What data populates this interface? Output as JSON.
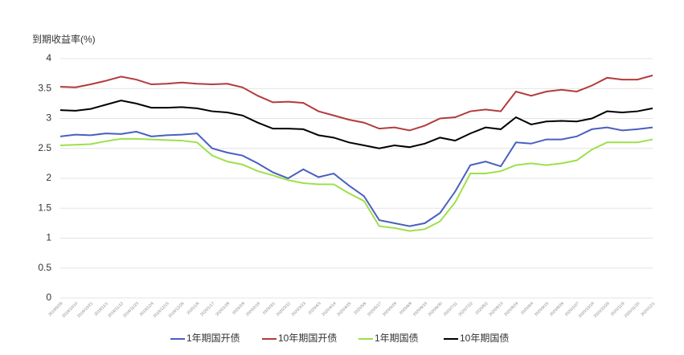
{
  "chart_data": {
    "type": "line",
    "title": "到期收益率(%)",
    "categories": [
      "2019/9/29",
      "2019/10/10",
      "2019/10/21",
      "2019/11/1",
      "2019/11/12",
      "2019/11/23",
      "2019/12/4",
      "2019/12/15",
      "2019/12/26",
      "2020/1/6",
      "2020/1/17",
      "2020/1/28",
      "2020/2/8",
      "2020/2/19",
      "2020/3/1",
      "2020/3/12",
      "2020/3/23",
      "2020/4/3",
      "2020/4/14",
      "2020/4/25",
      "2020/5/6",
      "2020/5/17",
      "2020/5/28",
      "2020/6/8",
      "2020/6/19",
      "2020/6/30",
      "2020/7/11",
      "2020/7/22",
      "2020/8/2",
      "2020/8/13",
      "2020/8/24",
      "2020/9/4",
      "2020/9/15",
      "2020/9/26",
      "2020/10/7",
      "2020/10/18",
      "2020/10/29",
      "2020/11/9",
      "2020/11/20",
      "2020/12/1"
    ],
    "series": [
      {
        "name": "1年期国开债",
        "color": "#4a5fc1",
        "values": [
          2.7,
          2.73,
          2.72,
          2.75,
          2.74,
          2.78,
          2.7,
          2.72,
          2.73,
          2.75,
          2.5,
          2.43,
          2.38,
          2.25,
          2.1,
          2.0,
          2.15,
          2.02,
          2.08,
          1.88,
          1.7,
          1.3,
          1.25,
          1.2,
          1.25,
          1.42,
          1.78,
          2.22,
          2.28,
          2.2,
          2.6,
          2.58,
          2.65,
          2.65,
          2.7,
          2.82,
          2.85,
          2.8,
          2.82,
          2.85
        ]
      },
      {
        "name": "10年期国开债",
        "color": "#b33b3b",
        "values": [
          3.53,
          3.52,
          3.57,
          3.63,
          3.7,
          3.65,
          3.57,
          3.58,
          3.6,
          3.58,
          3.57,
          3.58,
          3.52,
          3.38,
          3.27,
          3.28,
          3.26,
          3.12,
          3.05,
          2.98,
          2.93,
          2.83,
          2.85,
          2.8,
          2.88,
          3.0,
          3.02,
          3.12,
          3.15,
          3.12,
          3.45,
          3.38,
          3.45,
          3.48,
          3.45,
          3.55,
          3.68,
          3.65,
          3.65,
          3.72
        ]
      },
      {
        "name": "1年期国债",
        "color": "#9de04a",
        "values": [
          2.55,
          2.56,
          2.57,
          2.62,
          2.66,
          2.66,
          2.65,
          2.64,
          2.63,
          2.6,
          2.38,
          2.28,
          2.23,
          2.12,
          2.05,
          1.97,
          1.92,
          1.9,
          1.9,
          1.75,
          1.62,
          1.2,
          1.17,
          1.12,
          1.15,
          1.28,
          1.6,
          2.08,
          2.08,
          2.12,
          2.22,
          2.25,
          2.22,
          2.25,
          2.3,
          2.48,
          2.6,
          2.6,
          2.6,
          2.65
        ]
      },
      {
        "name": "10年期国债",
        "color": "#000000",
        "values": [
          3.14,
          3.13,
          3.16,
          3.23,
          3.3,
          3.25,
          3.18,
          3.18,
          3.19,
          3.17,
          3.12,
          3.1,
          3.05,
          2.93,
          2.83,
          2.83,
          2.82,
          2.72,
          2.68,
          2.6,
          2.55,
          2.5,
          2.55,
          2.52,
          2.58,
          2.68,
          2.63,
          2.75,
          2.85,
          2.82,
          3.02,
          2.9,
          2.95,
          2.96,
          2.95,
          3.0,
          3.12,
          3.1,
          3.12,
          3.17
        ]
      }
    ],
    "ylim": [
      0,
      4
    ],
    "yticks": [
      0,
      0.5,
      1,
      1.5,
      2,
      2.5,
      3,
      3.5,
      4
    ],
    "grid": true,
    "legend": "bottom"
  }
}
